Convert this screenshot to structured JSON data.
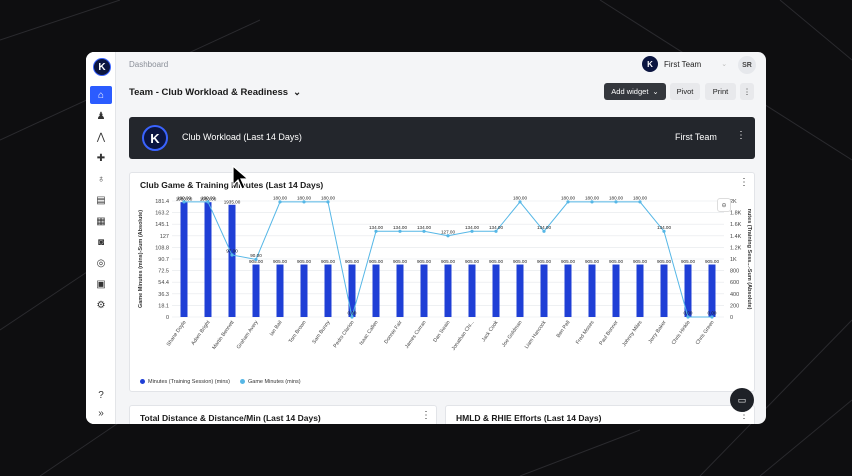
{
  "breadcrumb": "Dashboard",
  "team": {
    "name": "First Team",
    "avatar_initials": "SR",
    "logo_letter": "K"
  },
  "page_title": "Team - Club Workload & Readiness",
  "toolbar": {
    "add_widget": "Add widget",
    "pivot": "Pivot",
    "print": "Print",
    "more": "⋮"
  },
  "banner": {
    "title": "Club Workload (Last 14 Days)",
    "team": "First Team",
    "logo_letter": "K"
  },
  "sidebar": {
    "items": [
      {
        "icon": "dashboard-icon",
        "glyph": "⌂"
      },
      {
        "icon": "athlete-icon",
        "glyph": "♟"
      },
      {
        "icon": "squad-icon",
        "glyph": "⋀"
      },
      {
        "icon": "medical-icon",
        "glyph": "✚"
      },
      {
        "icon": "stethoscope-icon",
        "glyph": "♁"
      },
      {
        "icon": "clipboard-icon",
        "glyph": "▤"
      },
      {
        "icon": "calendar-icon",
        "glyph": "▦"
      },
      {
        "icon": "camera-icon",
        "glyph": "◙"
      },
      {
        "icon": "messages-icon",
        "glyph": "◎"
      },
      {
        "icon": "media-icon",
        "glyph": "▣"
      },
      {
        "icon": "settings-icon",
        "glyph": "⚙"
      }
    ],
    "help_glyph": "?",
    "expand_glyph": "»"
  },
  "chart_data": {
    "type": "bar",
    "title": "Club Game & Training Minutes (Last 14 Days)",
    "ylabel_left": "Game Minutes (mins)-Sum (Absolute)",
    "ylabel_right": "nutes (Training Sess...-Sum (Absolute)",
    "left_ticks": [
      "181.4",
      "163.2",
      "145.1",
      "127",
      "108.8",
      "90.7",
      "72.5",
      "54.4",
      "36.3",
      "18.1",
      "0"
    ],
    "right_ticks": [
      "2K",
      "1.8K",
      "1.6K",
      "1.4K",
      "1.2K",
      "1K",
      "800",
      "600",
      "400",
      "200",
      "0"
    ],
    "ylim_left": [
      0,
      181.4
    ],
    "ylim_right": [
      0,
      2000
    ],
    "categories": [
      "Shane Doyle",
      "Adam Bright",
      "Martin Bennett",
      "Graham Avery",
      "Ian Bail",
      "Tom Brown",
      "Sam Bunny",
      "Pedro Clarion",
      "Isaac Callen",
      "Donnie Fair",
      "James Curran",
      "Dan Swain",
      "Jonathan Chi...",
      "Jack Cook",
      "Joe Goldman",
      "Liam Hancock",
      "Ben Pell",
      "Fred Moses",
      "Paul Bonner",
      "Johnny Miles",
      "Jerry Baker",
      "Chris Hinkle",
      "Chris Green"
    ],
    "series": [
      {
        "name": "Minutes (Training Session) (mins)",
        "axis": "right",
        "color": "#1f3fd6",
        "values": [
          1980,
          1980,
          1935,
          905,
          905,
          905,
          905,
          905,
          905,
          905,
          905,
          905,
          905,
          905,
          905,
          905,
          905,
          905,
          905,
          905,
          905,
          905,
          905
        ],
        "labels": [
          "1980.00",
          "1980.00",
          "1935.00",
          "905.00",
          "905.00",
          "905.00",
          "905.00",
          "905.00",
          "905.00",
          "905.00",
          "905.00",
          "905.00",
          "905.00",
          "905.00",
          "905.00",
          "905.00",
          "905.00",
          "905.00",
          "905.00",
          "905.00",
          "905.00",
          "905.00",
          "905.00"
        ]
      },
      {
        "name": "Game Minutes (mins)",
        "axis": "left",
        "color": "#56b7e6",
        "values": [
          180,
          180,
          97,
          90,
          180,
          180,
          180,
          0,
          134,
          134,
          134,
          127,
          134,
          134,
          180,
          134,
          180,
          180,
          180,
          180,
          134,
          0,
          0
        ],
        "labels": [
          "180.00",
          "180.00",
          "97.00",
          "90.00",
          "180.00",
          "180.00",
          "180.00",
          "0.00",
          "134.00",
          "134.00",
          "134.00",
          "127.00",
          "134.00",
          "134.00",
          "180.00",
          "134.00",
          "180.00",
          "180.00",
          "180.00",
          "180.00",
          "134.00",
          "0.00",
          "0.00"
        ]
      }
    ],
    "legend_position": "bottom-left",
    "grid": true
  },
  "zoom_glyph": "⊖",
  "bottom_cards": [
    {
      "title": "Total Distance & Distance/Min (Last 14 Days)"
    },
    {
      "title": "HMLD & RHIE Efforts (Last 14 Days)"
    }
  ],
  "chat_glyph": "▭"
}
